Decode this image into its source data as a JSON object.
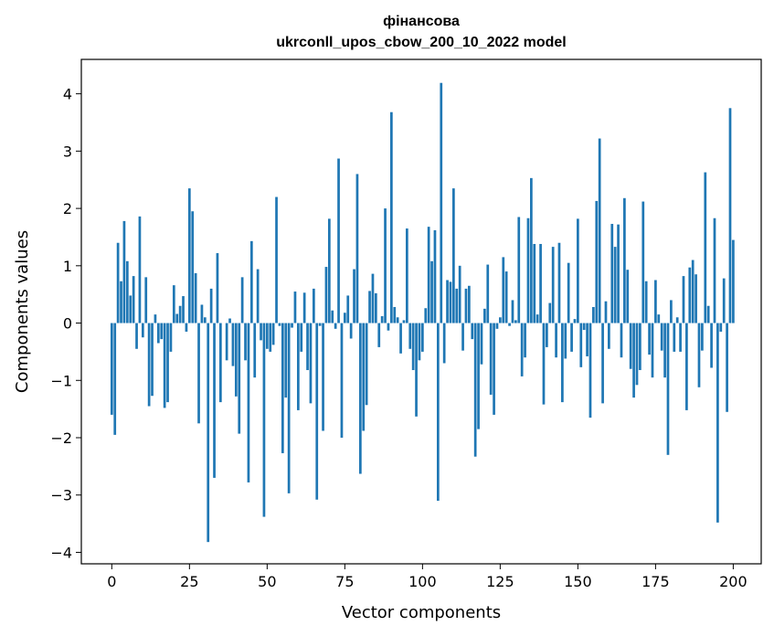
{
  "chart_data": {
    "type": "bar",
    "title": "фінансова",
    "subtitle": "ukrconll_upos_cbow_200_10_2022 model",
    "xlabel": "Vector components",
    "ylabel": "Components values",
    "xlim": [
      -9.8,
      209
    ],
    "ylim": [
      -4.2,
      4.6
    ],
    "x_ticks": [
      0,
      25,
      50,
      75,
      100,
      125,
      150,
      175,
      200
    ],
    "y_ticks": [
      -4,
      -3,
      -2,
      -1,
      0,
      1,
      2,
      3,
      4
    ],
    "x_tick_labels": [
      "0",
      "25",
      "50",
      "75",
      "100",
      "125",
      "150",
      "175",
      "200"
    ],
    "y_tick_labels": [
      "−4",
      "−3",
      "−2",
      "−1",
      "0",
      "1",
      "2",
      "3",
      "4"
    ],
    "color": "#1f77b4",
    "values": [
      -1.6,
      -1.95,
      1.4,
      0.73,
      1.78,
      1.08,
      0.48,
      0.82,
      -0.45,
      1.86,
      -0.25,
      0.8,
      -1.45,
      -1.27,
      0.15,
      -0.35,
      -0.28,
      -1.48,
      -1.38,
      -0.5,
      0.66,
      0.16,
      0.3,
      0.47,
      -0.15,
      2.35,
      1.95,
      0.87,
      -1.75,
      0.32,
      0.1,
      -3.82,
      0.6,
      -2.7,
      1.22,
      -1.38,
      0.0,
      -0.65,
      0.08,
      -0.75,
      -1.28,
      -1.93,
      0.8,
      -0.65,
      -2.78,
      1.43,
      -0.95,
      0.94,
      -0.3,
      -3.38,
      -0.45,
      -0.5,
      -0.38,
      2.2,
      -0.05,
      -2.27,
      -1.3,
      -2.97,
      -0.08,
      0.55,
      -1.52,
      -0.5,
      0.53,
      -0.82,
      -1.4,
      0.6,
      -3.08,
      -0.05,
      -1.88,
      0.98,
      1.82,
      0.22,
      -0.1,
      2.87,
      -2.0,
      0.18,
      0.48,
      -0.27,
      0.94,
      2.6,
      -2.63,
      -1.88,
      -1.43,
      0.56,
      0.86,
      0.52,
      -0.42,
      0.12,
      2.0,
      -0.13,
      3.68,
      0.28,
      0.1,
      -0.53,
      0.05,
      1.65,
      -0.45,
      -0.82,
      -1.63,
      -0.65,
      -0.5,
      0.26,
      1.68,
      1.08,
      1.62,
      -3.1,
      4.19,
      -0.7,
      0.75,
      0.72,
      2.35,
      0.6,
      1.0,
      -0.48,
      0.6,
      0.65,
      -0.28,
      -2.33,
      -1.85,
      -0.72,
      0.25,
      1.02,
      -1.25,
      -1.6,
      -0.1,
      0.1,
      1.15,
      0.9,
      -0.05,
      0.4,
      0.05,
      1.85,
      -0.93,
      -0.6,
      1.83,
      2.53,
      1.38,
      0.15,
      1.38,
      -1.42,
      -0.42,
      0.35,
      1.33,
      -0.6,
      1.4,
      -1.38,
      -0.62,
      1.05,
      -0.5,
      0.07,
      1.82,
      -0.77,
      -0.12,
      -0.58,
      -1.65,
      0.28,
      2.13,
      3.22,
      -1.4,
      0.38,
      -0.45,
      1.73,
      1.33,
      1.72,
      -0.6,
      2.18,
      0.93,
      -0.8,
      -1.3,
      -1.08,
      -0.82,
      2.12,
      0.73,
      -0.55,
      -0.95,
      0.75,
      0.15,
      -0.48,
      -0.95,
      -2.3,
      0.4,
      -0.5,
      0.1,
      -0.5,
      0.82,
      -1.52,
      0.97,
      1.1,
      0.85,
      -1.12,
      -0.48,
      2.63,
      0.3,
      -0.78,
      1.83,
      -3.48,
      -0.15,
      0.78,
      -1.55,
      3.75,
      1.45
    ]
  }
}
